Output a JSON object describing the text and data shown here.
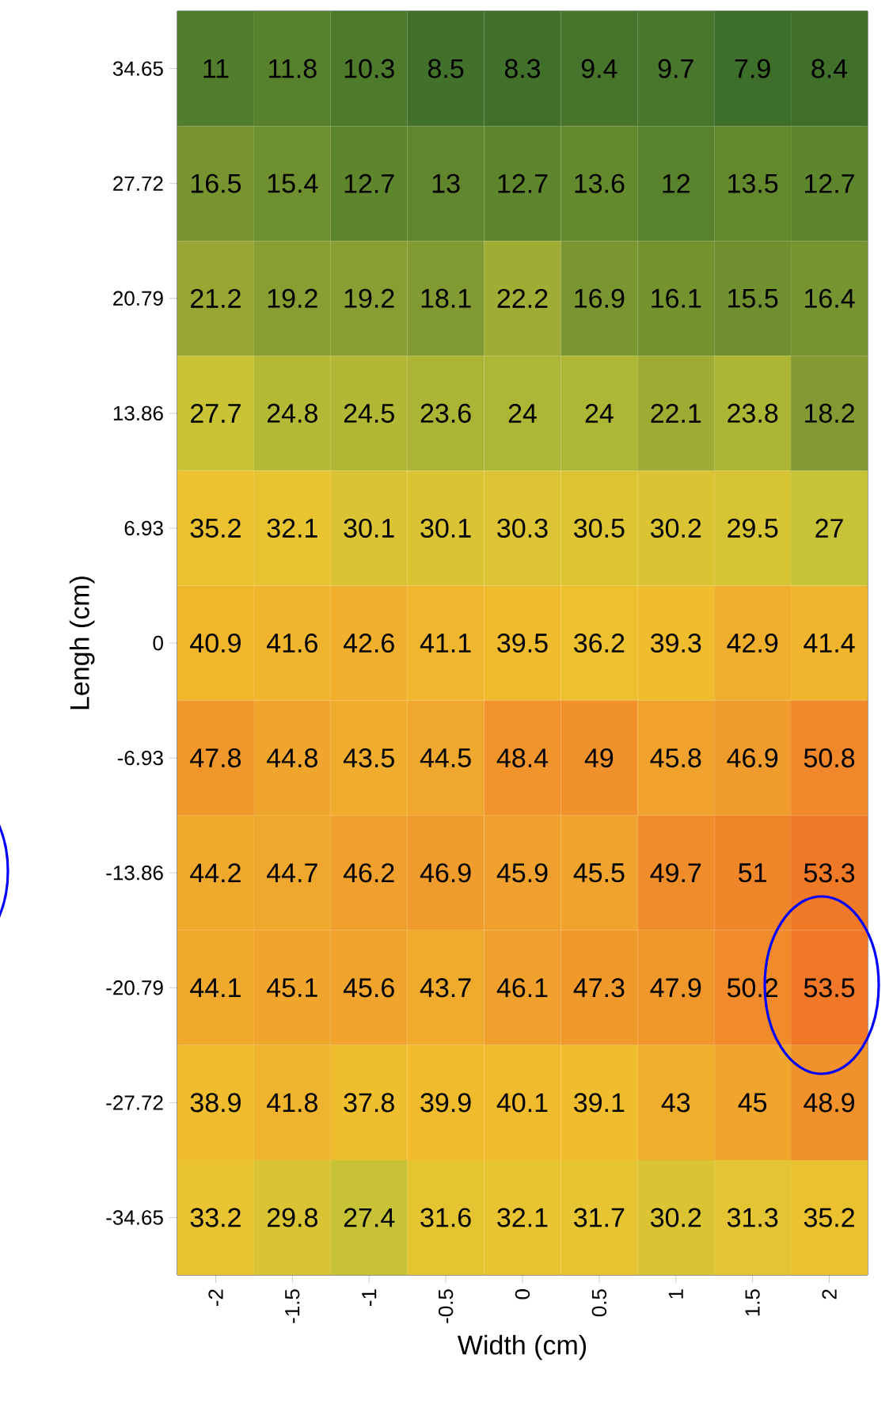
{
  "chart_data": {
    "type": "heatmap",
    "xlabel": "Width (cm)",
    "ylabel": "Lengh (cm)",
    "categories": [
      "-2",
      "-1.5",
      "-1",
      "-0.5",
      "0",
      "0.5",
      "1",
      "1.5",
      "2"
    ],
    "y_categories": [
      "34.65",
      "27.72",
      "20.79",
      "13.86",
      "6.93",
      "0",
      "-6.93",
      "-13.86",
      "-20.79",
      "-27.72",
      "-34.65"
    ],
    "cells": [
      [
        11,
        11.8,
        10.3,
        8.5,
        8.3,
        9.4,
        9.7,
        7.9,
        8.4
      ],
      [
        16.5,
        15.4,
        12.7,
        13,
        12.7,
        13.6,
        12,
        13.5,
        12.7
      ],
      [
        21.2,
        19.2,
        19.2,
        18.1,
        22.2,
        16.9,
        16.1,
        15.5,
        16.4
      ],
      [
        27.7,
        24.8,
        24.5,
        23.6,
        24,
        24,
        22.1,
        23.8,
        18.2
      ],
      [
        35.2,
        32.1,
        30.1,
        30.1,
        30.3,
        30.5,
        30.2,
        29.5,
        27
      ],
      [
        40.9,
        41.6,
        42.6,
        41.1,
        39.5,
        36.2,
        39.3,
        42.9,
        41.4
      ],
      [
        47.8,
        44.8,
        43.5,
        44.5,
        48.4,
        49,
        45.8,
        46.9,
        50.8
      ],
      [
        44.2,
        44.7,
        46.2,
        46.9,
        45.9,
        45.5,
        49.7,
        51,
        53.3
      ],
      [
        44.1,
        45.1,
        45.6,
        43.7,
        46.1,
        47.3,
        47.9,
        50.2,
        53.5
      ],
      [
        38.9,
        41.8,
        37.8,
        39.9,
        40.1,
        39.1,
        43,
        45,
        48.9
      ],
      [
        33.2,
        29.8,
        27.4,
        31.6,
        32.1,
        31.7,
        30.2,
        31.3,
        35.2
      ]
    ],
    "data_labels": true
  }
}
